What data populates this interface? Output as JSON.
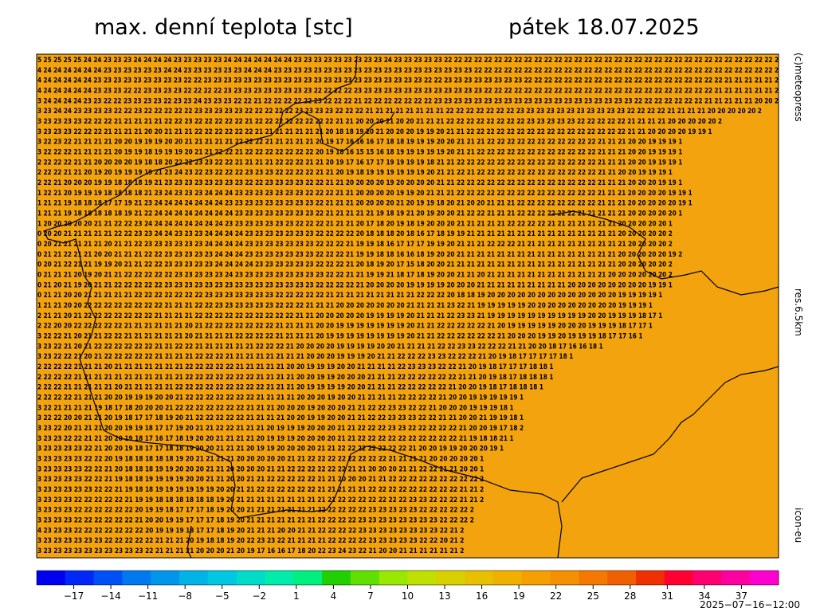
{
  "header": {
    "title": "max. denní teplota [stc]",
    "date": "pátek 18.07.2025"
  },
  "side": {
    "credit": "(c)meteopress",
    "resolution": "res.6.5km",
    "model": "icon-eu"
  },
  "footer": {
    "run": "2025−07−16−12:00"
  },
  "grid": {
    "rows": [
      "5 25 25 25 25 24 24 23 23 23 24 24 24 24 23 23 23 23 23 24 24 24 24 24 24 24 23 23 23 23 23 23 23 23 23 24 23 23 23 23 23 22 22 22 22 22 22 22 22 22 22 22 22 22 22 22 22 22 22 22 22 22 22 22 22 22 22 22 22 22 22 22 22 22 2",
      "4 24 24 24 24 24 24 23 23 23 23 23 23 24 24 23 23 23 23 23 23 24 24 24 23 23 23 23 23 23 23 23 23 23 23 23 23 23 23 23 23 23 23 23 22 22 22 22 22 22 22 22 22 22 22 22 22 22 22 22 22 22 22 22 22 22 22 22 22 22 22 22 22 22 2",
      "4 24 24 24 24 24 23 23 23 23 23 23 23 23 23 22 22 23 23 23 23 23 23 23 23 23 23 23 23 23 23 23 23 23 23 23 23 23 23 22 22 23 23 23 23 23 23 23 23 22 22 22 22 22 22 22 22 22 22 22 22 22 22 22 22 22 22 22 22 21 21 21 21 21 2",
      "4 24 24 24 24 24 23 23 23 22 22 23 23 23 23 22 22 22 22 23 23 23 23 23 23 23 23 23 22 22 22 22 23 23 23 23 23 23 23 23 23 23 23 23 23 22 22 22 22 22 22 22 22 22 22 22 22 22 22 22 22 22 22 22 22 22 22 22 21 21 21 21 21 21 2",
      "3 24 24 24 24 23 23 22 22 23 23 23 23 22 23 23 24 23 23 23 22 22 21 22 22 22 22 22 23 22 22 22 21 22 22 22 22 22 22 22 23 23 23 23 23 23 23 23 23 23 23 23 23 23 23 23 23 23 23 23 22 22 22 22 22 22 22 21 21 21 21 21 20 20 2",
      "3 23 24 24 23 23 23 23 22 22 23 22 22 22 22 22 23 23 23 23 23 22 22 22 22 22 23 23 23 23 22 22 22 21 21 21 21 21 21 21 21 22 22 22 22 22 22 22 23 23 23 23 23 23 23 23 23 23 23 22 22 22 22 21 21 21 21 20 20 20 20 20 2",
      "3 23 23 23 23 22 22 22 21 21 21 21 21 22 22 23 22 22 22 22 22 21 22 22 22 22 22 22 22 22 21 21 20 20 20 21 20 20 21 21 21 22 22 22 22 22 22 22 22 23 23 23 23 23 22 22 22 22 22 21 21 21 21 20 20 20 20 20 2",
      "3 23 23 23 22 22 22 21 21 21 21 20 20 21 21 21 22 22 22 22 22 22 21 21 21 21 21 21 21 20 18 18 19 20 21 20 20 20 19 19 20 21 21 22 22 22 22 22 22 22 22 22 22 22 22 22 22 22 22 21 21 20 20 20 20 19 19 1",
      "3 22 23 22 21 21 21 21 20 20 19 19 19 20 20 21 21 21 21 21 22 22 22 21 21 21 21 21 20 19 17 16 16 16 17 18 18 19 19 19 20 20 21 21 21 22 22 22 22 22 22 22 22 22 22 22 21 21 21 20 20 19 19 19 1",
      "3 22 22 22 21 21 21 21 20 19 19 18 19 19 19 20 21 21 22 22 21 22 22 22 22 22 22 22 20 19 18 16 15 15 16 18 19 19 19 19 19 20 21 21 22 22 22 22 22 22 22 22 22 22 22 22 21 21 21 20 20 19 19 19 1",
      "2 22 22 22 21 21 20 20 20 20 19 18 18 20 22 22 23 23 22 22 21 21 21 21 22 22 22 21 21 20 19 17 16 17 17 19 19 19 19 18 21 21 22 22 22 22 22 22 22 22 22 22 22 22 22 22 21 21 21 20 20 19 19 19 1",
      "2 22 22 21 21 20 19 20 19 19 19 19 21 23 24 23 22 23 22 22 22 23 23 23 22 22 22 22 21 21 20 19 18 19 19 19 19 19 19 20 21 21 22 21 22 22 22 22 22 22 22 22 22 22 22 22 21 21 20 20 19 19 19 1",
      "2 22 21 20 20 20 19 19 18 18 18 19 21 23 23 23 23 23 23 23 23 22 22 23 23 23 23 22 22 21 21 20 20 20 20 19 20 20 20 20 21 21 22 22 22 22 22 22 22 22 22 22 22 22 22 22 21 21 21 20 20 20 19 19 1",
      "1 22 21 20 19 19 19 18 18 18 18 21 23 24 23 23 23 24 24 24 23 23 23 23 23 23 23 22 22 22 21 21 20 20 20 20 19 19 20 21 21 21 22 22 22 22 22 22 22 22 22 22 22 22 22 22 21 21 21 20 20 20 20 19 19 1",
      "1 21 21 19 18 18 18 17 17 19 21 23 24 24 24 24 24 24 24 23 23 23 23 23 23 23 23 23 22 21 21 21 20 20 20 20 21 20 19 19 18 20 21 20 20 21 21 21 22 22 22 22 22 22 22 22 21 21 21 20 20 20 20 20 19 1",
      "1 21 21 19 18 18 18 18 18 19 21 22 24 24 24 24 24 24 24 24 23 23 23 23 23 23 23 23 22 21 21 21 21 21 19 18 19 21 20 19 20 20 21 22 22 21 21 21 22 22 22 22 22 22 21 21 21 21 21 20 20 20 20 20 1",
      "1 20 20 20 20 20 21 21 22 22 23 24 24 24 24 24 24 24 24 23 23 23 23 23 23 23 22 22 22 21 21 21 20 17 18 20 19 18 19 20 20 20 21 21 21 21 21 22 22 22 22 21 21 21 21 21 21 21 20 20 20 20 20 1",
      "0 20 20 21 21 21 21 21 22 22 23 23 24 24 23 23 23 24 24 24 24 23 23 23 23 23 23 23 22 22 22 22 20 18 18 18 20 18 16 17 18 19 19 21 21 21 21 21 21 21 21 21 21 21 21 21 21 21 20 20 20 20 20 2",
      "0 20 21 21 21 21 21 20 21 21 22 23 23 23 23 23 23 24 24 24 24 23 23 23 23 23 23 23 22 22 22 21 19 19 18 16 17 17 17 19 19 20 21 21 21 22 22 22 21 21 21 21 21 21 21 21 21 21 21 20 20 20 20 2",
      "0 21 21 22 21 21 20 20 21 21 21 22 22 23 23 23 23 23 24 24 24 23 23 23 23 23 23 23 22 22 22 21 19 19 18 18 16 16 18 19 20 20 21 21 21 21 21 21 21 21 21 21 21 21 21 21 21 21 20 20 20 20 20 19 2",
      "0 20 21 22 21 21 19 19 20 21 21 22 22 23 23 23 23 23 24 24 24 24 23 23 23 23 23 23 22 22 22 21 20 18 19 20 17 15 18 20 20 21 21 21 21 21 21 21 21 21 21 21 21 21 21 21 21 21 20 20 20 20 20 2",
      "0 21 21 21 20 19 20 21 21 22 22 22 22 22 23 23 23 23 23 24 23 23 23 23 23 23 23 23 23 22 22 21 21 19 19 21 18 17 18 19 20 20 21 21 20 21 21 21 21 21 21 21 21 21 21 21 21 20 20 20 20 20 20 2",
      "0 21 20 21 19 20 21 21 22 22 22 22 22 23 23 23 23 23 23 23 23 23 23 23 23 23 23 23 22 22 22 22 21 20 20 20 20 19 19 19 19 20 20 20 21 21 21 21 21 21 21 21 21 20 20 20 20 20 20 20 20 19 19 1",
      "0 21 21 20 20 21 21 21 21 21 22 22 22 22 22 22 22 23 23 23 23 23 23 23 22 22 22 22 22 21 21 21 21 21 21 21 21 21 22 22 22 20 18 18 19 20 20 20 20 20 20 20 20 20 20 20 20 20 19 19 19 19 1",
      "1 21 21 20 20 22 22 22 22 22 22 22 22 21 21 21 22 22 23 23 23 23 23 23 22 22 22 21 21 21 20 20 20 20 20 20 20 21 21 21 21 23 22 21 19 19 19 19 19 20 20 20 20 20 20 20 20 20 19 19 19 1",
      "2 21 21 20 21 22 22 22 22 22 22 22 21 21 21 21 22 22 22 22 22 22 22 22 22 22 21 21 20 20 20 20 20 19 19 19 19 20 21 21 21 22 23 23 21 19 19 19 19 19 19 19 19 19 19 20 20 19 19 19 18 17 1",
      "2 22 20 20 22 22 22 22 22 21 21 21 21 21 21 20 21 22 22 22 22 22 22 22 21 21 21 21 20 20 19 19 19 19 19 19 19 20 21 21 22 22 22 22 22 21 20 19 19 19 19 19 20 20 20 19 19 19 18 17 17 1",
      "3 22 22 21 20 21 21 22 22 21 21 21 21 21 21 20 21 21 21 21 22 22 22 22 21 21 21 21 20 19 19 19 19 19 19 19 19 20 21 21 22 22 22 22 22 22 21 20 20 20 19 19 20 19 19 19 18 17 17 16 1",
      "3 23 22 21 20 21 22 22 22 22 22 22 21 21 22 22 21 21 21 21 21 21 22 22 22 21 20 20 20 20 19 19 19 19 20 20 21 21 21 21 22 22 23 23 22 22 22 21 21 20 20 18 17 16 16 18 1",
      "3 23 22 22 21 20 21 22 22 22 22 22 21 21 21 21 22 22 22 21 21 21 21 21 21 21 21 20 20 20 19 19 19 20 21 21 22 22 22 23 23 22 22 22 21 20 19 18 17 17 17 17 18 1",
      "2 22 22 22 21 21 21 20 21 21 21 21 21 21 21 22 22 22 22 22 21 21 21 21 21 20 20 19 19 19 20 20 21 21 21 21 22 23 23 23 22 22 21 20 19 18 17 17 17 18 18 1",
      "2 22 22 22 21 21 21 21 21 21 21 21 21 21 21 22 22 22 22 22 22 22 21 21 21 21 20 20 19 19 20 20 20 21 21 21 22 22 22 22 22 22 21 21 20 19 18 17 18 18 18 1",
      "2 22 22 21 21 21 21 21 20 21 21 21 21 21 22 22 22 22 22 22 22 22 22 21 21 21 20 19 19 19 19 20 20 21 21 21 22 22 22 22 22 21 20 20 19 18 17 18 18 18 1",
      "2 22 22 22 21 21 21 20 20 19 19 19 20 20 21 22 22 22 22 22 22 22 21 21 21 21 20 20 20 19 20 20 21 21 21 21 22 22 22 22 21 20 20 19 19 19 19 19 1",
      "3 22 21 21 21 21 19 18 17 18 20 20 20 21 22 22 22 22 22 22 22 21 21 21 20 20 20 19 20 20 20 21 21 22 22 23 23 22 22 21 20 20 20 19 19 19 18 1",
      "3 22 22 20 20 21 21 20 19 18 17 17 18 19 20 21 22 22 22 22 22 21 21 21 21 20 20 19 19 20 20 21 21 22 22 23 23 23 22 22 21 21 20 20 21 19 19 18 1",
      "3 23 22 20 21 21 21 20 20 19 19 18 17 17 19 20 21 21 22 22 21 21 21 20 19 19 19 20 20 20 21 21 22 22 22 23 23 22 22 22 22 22 21 20 20 19 17 18 2",
      "3 23 23 22 22 21 21 20 20 19 18 17 16 17 18 19 20 20 21 21 21 21 20 19 19 19 20 20 20 20 21 21 22 22 22 22 22 22 22 22 22 22 21 19 18 18 21 1",
      "3 23 23 23 23 22 21 20 20 19 18 17 17 18 18 19 20 20 21 21 21 20 19 19 20 20 20 20 21 21 22 22 22 22 22 22 22 21 20 20 19 19 20 20 20 19 1",
      "3 23 23 23 23 22 22 20 19 18 18 18 18 18 19 20 21 21 21 21 20 20 20 20 20 21 21 22 22 22 22 22 22 22 22 21 21 21 21 20 20 20 20 20 1",
      "3 23 23 23 23 22 22 21 20 18 18 18 19 19 20 20 20 21 21 20 20 20 20 21 21 22 22 22 22 22 22 21 21 20 20 20 21 21 22 22 21 21 20 20 1",
      "3 23 23 23 23 22 22 21 19 18 18 19 19 19 19 20 20 21 21 20 20 21 21 22 22 22 22 22 21 21 20 20 20 21 21 22 22 22 22 22 22 22 22 22 2",
      "3 23 23 23 23 23 22 22 21 19 18 18 19 19 19 19 19 19 20 20 21 21 22 22 22 22 22 22 21 21 21 21 21 22 22 22 22 22 22 22 22 22 21 21 2",
      "3 23 23 23 22 22 22 22 22 21 19 19 18 18 18 18 18 18 19 20 21 21 21 21 21 21 21 21 21 21 22 22 22 22 22 22 22 23 23 22 22 22 21 21 2",
      "3 23 23 23 22 22 22 22 22 22 20 19 19 18 17 17 17 18 19 20 20 21 21 21 21 21 21 21 22 22 22 22 22 23 23 23 23 23 22 22 22 22 22 2",
      "3 23 23 23 22 22 22 22 22 22 21 20 20 19 19 17 17 17 18 19 20 21 21 21 21 21 21 21 22 22 22 22 23 23 23 23 23 23 23 23 22 22 22 2",
      "4 23 23 23 22 22 22 22 22 22 22 20 19 19 19 18 17 17 18 19 20 21 21 21 20 20 21 21 22 22 22 22 23 23 23 23 23 23 23 23 22 21 2",
      "3 23 23 23 23 23 23 22 22 22 22 22 21 21 21 20 19 18 18 19 20 22 23 23 22 21 21 21 21 22 22 22 22 23 23 23 23 23 22 22 20 21 2",
      "3 23 23 23 23 23 23 23 23 23 23 22 21 21 21 21 20 20 20 21 20 19 17 16 16 17 18 20 22 23 24 23 22 21 20 20 21 21 21 21 21 21 2"
    ]
  },
  "colorbar": {
    "range": [
      -20,
      40
    ],
    "colors": [
      "#0000f0",
      "#0028f8",
      "#0050f8",
      "#0078f0",
      "#0096ec",
      "#00b4e8",
      "#00c8e0",
      "#00dcc8",
      "#00ecaa",
      "#00f080",
      "#20d000",
      "#60e000",
      "#98e800",
      "#c0e000",
      "#d8d000",
      "#e8c000",
      "#f0b000",
      "#f5a000",
      "#f59000",
      "#f57800",
      "#f06000",
      "#f03000",
      "#ff0030",
      "#ff0070",
      "#ff00a0",
      "#ff00d0"
    ],
    "ticks": [
      {
        "value": -17,
        "label": "−17"
      },
      {
        "value": -14,
        "label": "−14"
      },
      {
        "value": -11,
        "label": "−11"
      },
      {
        "value": -8,
        "label": "−8"
      },
      {
        "value": -5,
        "label": "−5"
      },
      {
        "value": -2,
        "label": "−2"
      },
      1,
      4,
      7,
      10,
      13,
      16,
      19,
      22,
      25,
      28,
      31,
      34,
      37
    ]
  }
}
